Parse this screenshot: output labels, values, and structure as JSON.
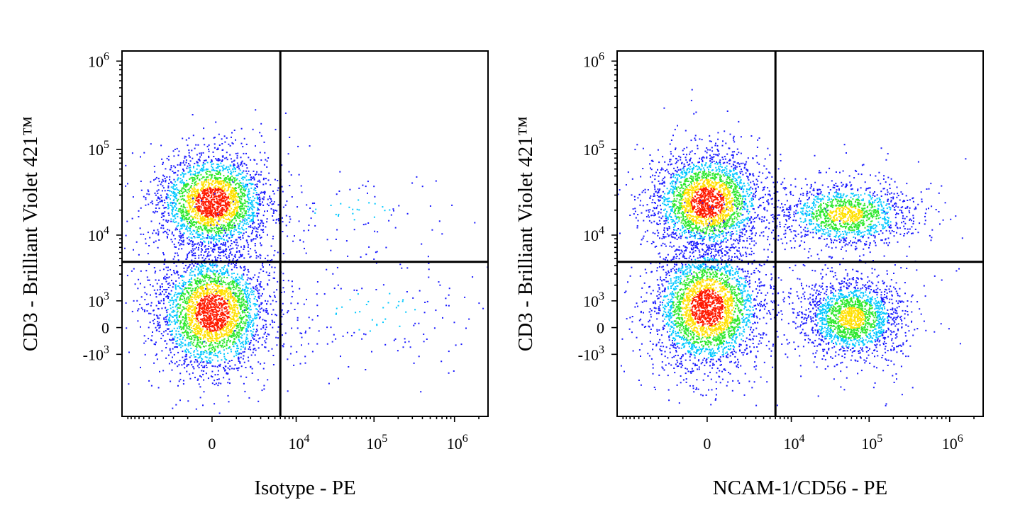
{
  "chart_data": [
    {
      "type": "scatter",
      "subtype": "flow-cytometry-density-dot-plot",
      "xlabel": "Isotype - PE",
      "ylabel": "CD3 - Brilliant Violet 421™",
      "xscale": "biexponential",
      "yscale": "biexponential",
      "x_ticks": [
        "0",
        "10^4",
        "10^5",
        "10^6"
      ],
      "y_ticks": [
        "10^6",
        "10^5",
        "10^4",
        "10^3",
        "0",
        "-10^3"
      ],
      "quadrant_gate": {
        "x": 6000,
        "y": 4500
      },
      "populations": [
        {
          "quadrant": "upper-left",
          "x_center": 0,
          "y_center": 25000,
          "density": "high"
        },
        {
          "quadrant": "lower-left",
          "x_center": 0,
          "y_center": 500,
          "density": "high"
        },
        {
          "quadrant": "upper-right",
          "x_center": 50000,
          "y_center": 20000,
          "density": "sparse"
        },
        {
          "quadrant": "lower-right",
          "x_center": 100000,
          "y_center": 500,
          "density": "sparse"
        }
      ],
      "colormap": [
        "#1a1aff",
        "#00c8ff",
        "#2ee82e",
        "#ffe000",
        "#ff1a00"
      ]
    },
    {
      "type": "scatter",
      "subtype": "flow-cytometry-density-dot-plot",
      "xlabel": "NCAM-1/CD56 - PE",
      "ylabel": "CD3 - Brilliant Violet 421™",
      "xscale": "biexponential",
      "yscale": "biexponential",
      "x_ticks": [
        "0",
        "10^4",
        "10^5",
        "10^6"
      ],
      "y_ticks": [
        "10^6",
        "10^5",
        "10^4",
        "10^3",
        "0",
        "-10^3"
      ],
      "quadrant_gate": {
        "x": 6000,
        "y": 4500
      },
      "populations": [
        {
          "quadrant": "upper-left",
          "x_center": 0,
          "y_center": 25000,
          "density": "high"
        },
        {
          "quadrant": "upper-right",
          "x_center": 50000,
          "y_center": 18000,
          "density": "medium"
        },
        {
          "quadrant": "lower-left",
          "x_center": 0,
          "y_center": 700,
          "density": "high"
        },
        {
          "quadrant": "lower-right",
          "x_center": 60000,
          "y_center": 300,
          "density": "medium"
        }
      ],
      "colormap": [
        "#1a1aff",
        "#00c8ff",
        "#2ee82e",
        "#ffe000",
        "#ff1a00"
      ]
    }
  ]
}
